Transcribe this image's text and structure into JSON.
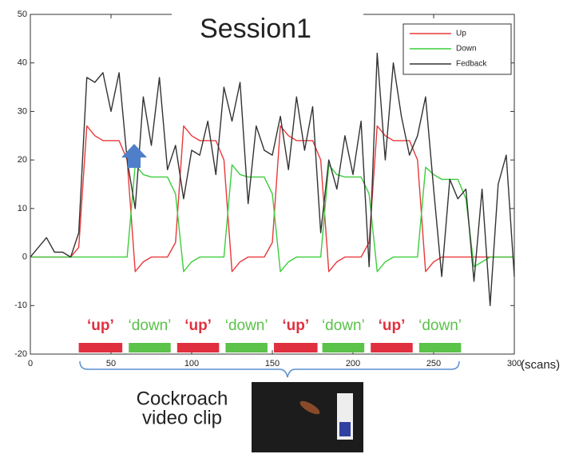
{
  "chart_data": {
    "type": "line",
    "title": "Session1",
    "xlabel": "(scans)",
    "x": [
      0,
      5,
      10,
      15,
      20,
      25,
      30,
      35,
      40,
      45,
      50,
      55,
      60,
      65,
      70,
      75,
      80,
      85,
      90,
      95,
      100,
      105,
      110,
      115,
      120,
      125,
      130,
      135,
      140,
      145,
      150,
      155,
      160,
      165,
      170,
      175,
      180,
      185,
      190,
      195,
      200,
      205,
      210,
      215,
      220,
      225,
      230,
      235,
      240,
      245,
      250,
      255,
      260,
      265,
      270,
      275,
      280,
      285,
      290,
      295,
      300
    ],
    "series": [
      {
        "name": "Up",
        "color": "#e8383a",
        "values": [
          0,
          0,
          0,
          0,
          0,
          0,
          2,
          27,
          25,
          24,
          24,
          24,
          20,
          -3,
          -1,
          0,
          0,
          0,
          3,
          27,
          25,
          24,
          24,
          24,
          20,
          -3,
          -1,
          0,
          0,
          0,
          3,
          27,
          25,
          24,
          24,
          24,
          20,
          -3,
          -1,
          0,
          0,
          0,
          3,
          27,
          25,
          24,
          24,
          24,
          20,
          -3,
          -1,
          0,
          0,
          0,
          0,
          0,
          0,
          0,
          0,
          0,
          0
        ]
      },
      {
        "name": "Down",
        "color": "#3ccd3c",
        "values": [
          0,
          0,
          0,
          0,
          0,
          0,
          0,
          0,
          0,
          0,
          0,
          0,
          0,
          19,
          17,
          16.5,
          16.5,
          16.5,
          13,
          -3,
          -1,
          0,
          0,
          0,
          0,
          19,
          17,
          16.5,
          16.5,
          16.5,
          13,
          -3,
          -1,
          0,
          0,
          0,
          0,
          19,
          17,
          16.5,
          16.5,
          16.5,
          13,
          -3,
          -1,
          0,
          0,
          0,
          0,
          18.5,
          17,
          16,
          16,
          16,
          12,
          -2,
          -1,
          0,
          0,
          0,
          0
        ]
      },
      {
        "name": "Fedback",
        "color": "#333333",
        "values": [
          0,
          2,
          4,
          1,
          1,
          0,
          5,
          37,
          36,
          38,
          30,
          38,
          20,
          10,
          33,
          23,
          37,
          18,
          23,
          12,
          22,
          21,
          28,
          17,
          35,
          28,
          36,
          11,
          27,
          22,
          21,
          29,
          18,
          33,
          22,
          31,
          5,
          20,
          14,
          25,
          17,
          28,
          -2,
          42,
          20,
          40,
          29,
          21,
          25,
          33,
          14,
          -4,
          16,
          12,
          14,
          -5,
          14,
          -10,
          15,
          21,
          -4
        ]
      }
    ],
    "xlim": [
      0,
      300
    ],
    "ylim": [
      -20,
      50
    ],
    "xticks": [
      0,
      50,
      100,
      150,
      200,
      250,
      300
    ],
    "yticks": [
      -20,
      -10,
      0,
      10,
      20,
      30,
      40,
      50
    ],
    "legend": "upper right",
    "blocks": [
      {
        "label": "‘up’",
        "color": "#e0303f",
        "start": 30,
        "end": 57
      },
      {
        "label": "‘down’",
        "color": "#5bc24a",
        "start": 61,
        "end": 87
      },
      {
        "label": "‘up’",
        "color": "#e0303f",
        "start": 91,
        "end": 117
      },
      {
        "label": "‘down’",
        "color": "#5bc24a",
        "start": 121,
        "end": 147
      },
      {
        "label": "‘up’",
        "color": "#e0303f",
        "start": 151,
        "end": 178
      },
      {
        "label": "‘down’",
        "color": "#5bc24a",
        "start": 181,
        "end": 207
      },
      {
        "label": "‘up’",
        "color": "#e0303f",
        "start": 211,
        "end": 237
      },
      {
        "label": "‘down’",
        "color": "#5bc24a",
        "start": 241,
        "end": 267
      }
    ],
    "annotation": [
      "Cockroach",
      "video clip"
    ]
  }
}
